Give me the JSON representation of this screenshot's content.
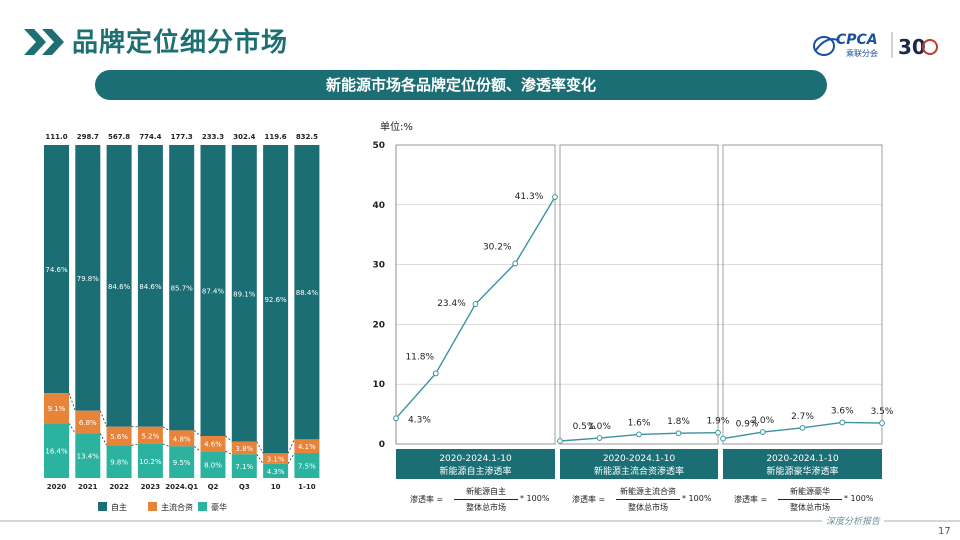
{
  "header": {
    "title": "品牌定位细分市场",
    "logo_text": "CPCA",
    "logo_sub": "乘联分会",
    "logo_anniv": "30"
  },
  "banner": "新能源市场各品牌定位份额、渗透率变化",
  "footer": {
    "tag": "深度分析报告",
    "page": "17"
  },
  "colors": {
    "self": "#1b6e73",
    "jv": "#e8833a",
    "lux": "#2bb3a0",
    "line": "#3a93a0"
  },
  "chart_data": [
    {
      "type": "bar",
      "stacked": true,
      "normalized": true,
      "categories": [
        "2020",
        "2021",
        "2022",
        "2023",
        "2024.Q1",
        "Q2",
        "Q3",
        "10",
        "1-10"
      ],
      "totals": [
        "111.0",
        "298.7",
        "567.8",
        "774.4",
        "177.3",
        "233.3",
        "302.4",
        "119.6",
        "832.5"
      ],
      "series": [
        {
          "name": "豪华",
          "color": "#2bb3a0",
          "values": [
            16.4,
            13.4,
            9.8,
            10.2,
            9.5,
            8.0,
            7.1,
            4.3,
            7.5
          ]
        },
        {
          "name": "主流合资",
          "color": "#e8833a",
          "values": [
            9.1,
            6.8,
            5.6,
            5.2,
            4.8,
            4.6,
            3.8,
            3.1,
            4.1
          ]
        },
        {
          "name": "自主",
          "color": "#1b6e73",
          "values": [
            74.6,
            79.8,
            84.6,
            84.6,
            85.7,
            87.4,
            89.1,
            92.6,
            88.4
          ]
        }
      ],
      "legend": {
        "position": "bottom",
        "order": [
          "自主",
          "主流合资",
          "豪华"
        ]
      }
    },
    {
      "type": "line",
      "ylabel": "单位:%",
      "ylim": [
        0,
        50
      ],
      "yticks": [
        0,
        10,
        20,
        30,
        40,
        50
      ],
      "panels": [
        {
          "label_top": "2020-2024.1-10",
          "label_bottom": "新能源自主渗透率",
          "values": [
            4.3,
            11.8,
            23.4,
            30.2,
            41.3
          ],
          "labels": [
            "4.3%",
            "11.8%",
            "23.4%",
            "30.2%",
            "41.3%"
          ],
          "formula": {
            "left": "渗透率 =",
            "num": "新能源自主",
            "den": "整体总市场",
            "right": "* 100%"
          }
        },
        {
          "label_top": "2020-2024.1-10",
          "label_bottom": "新能源主流合资渗透率",
          "values": [
            0.5,
            1.0,
            1.6,
            1.8,
            1.9
          ],
          "labels": [
            "0.5%",
            "1.0%",
            "1.6%",
            "1.8%",
            "1.9%"
          ],
          "formula": {
            "left": "渗透率 =",
            "num": "新能源主流合资",
            "den": "整体总市场",
            "right": "* 100%"
          }
        },
        {
          "label_top": "2020-2024.1-10",
          "label_bottom": "新能源豪华渗透率",
          "values": [
            0.9,
            2.0,
            2.7,
            3.6,
            3.5
          ],
          "labels": [
            "0.9%",
            "2.0%",
            "2.7%",
            "3.6%",
            "3.5%"
          ],
          "formula": {
            "left": "渗透率 =",
            "num": "新能源豪华",
            "den": "整体总市场",
            "right": "* 100%"
          }
        }
      ]
    }
  ]
}
